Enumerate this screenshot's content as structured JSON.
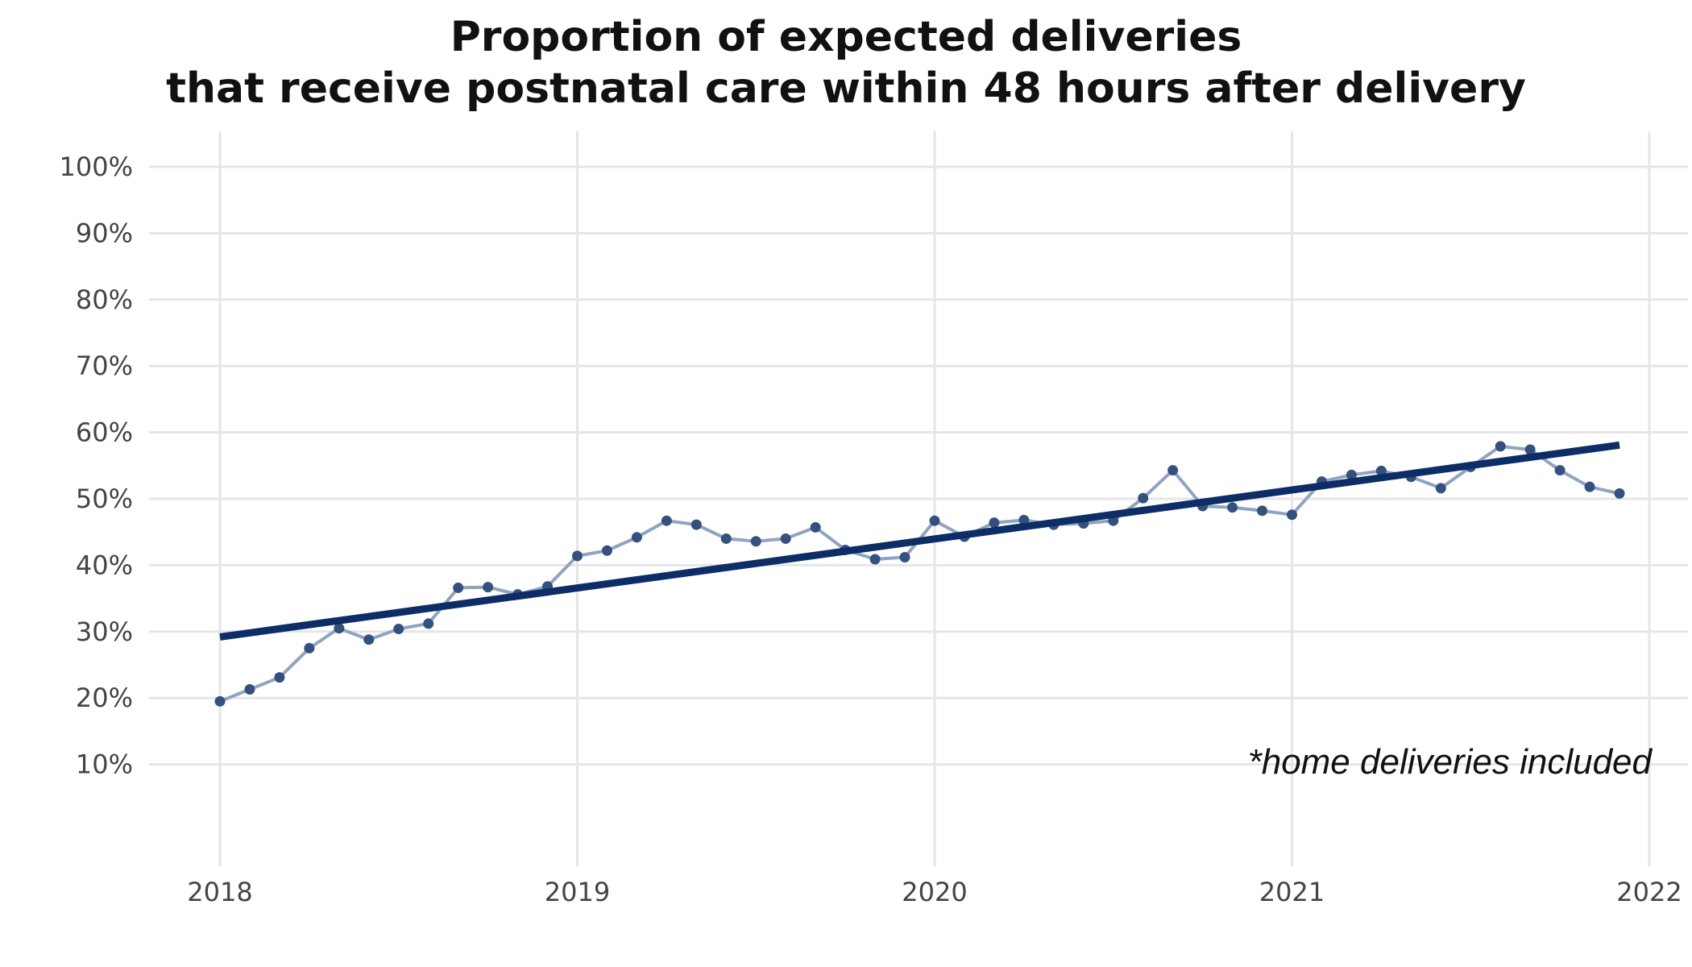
{
  "chart_data": {
    "type": "line",
    "title_line1": "Proportion of expected deliveries",
    "title_line2": "that receive postnatal care within 48 hours after delivery",
    "annotation": "*home deliveries included",
    "xlim": [
      2018,
      2022
    ],
    "ylim": [
      0,
      105
    ],
    "x_ticks": [
      {
        "value": 2018,
        "label": "2018"
      },
      {
        "value": 2019,
        "label": "2019"
      },
      {
        "value": 2020,
        "label": "2020"
      },
      {
        "value": 2021,
        "label": "2021"
      },
      {
        "value": 2022,
        "label": "2022"
      }
    ],
    "y_ticks": [
      {
        "value": 10,
        "label": "10%"
      },
      {
        "value": 20,
        "label": "20%"
      },
      {
        "value": 30,
        "label": "30%"
      },
      {
        "value": 40,
        "label": "40%"
      },
      {
        "value": 50,
        "label": "50%"
      },
      {
        "value": 60,
        "label": "60%"
      },
      {
        "value": 70,
        "label": "70%"
      },
      {
        "value": 80,
        "label": "80%"
      },
      {
        "value": 90,
        "label": "90%"
      },
      {
        "value": 100,
        "label": "100%"
      }
    ],
    "grid": true,
    "series": [
      {
        "kind": "monthly",
        "color": "#8fa3c2",
        "point_color": "#34517e",
        "x": [
          "2018-01",
          "2018-02",
          "2018-03",
          "2018-04",
          "2018-05",
          "2018-06",
          "2018-07",
          "2018-08",
          "2018-09",
          "2018-10",
          "2018-11",
          "2018-12",
          "2019-01",
          "2019-02",
          "2019-03",
          "2019-04",
          "2019-05",
          "2019-06",
          "2019-07",
          "2019-08",
          "2019-09",
          "2019-10",
          "2019-11",
          "2019-12",
          "2020-01",
          "2020-02",
          "2020-03",
          "2020-04",
          "2020-05",
          "2020-06",
          "2020-07",
          "2020-08",
          "2020-09",
          "2020-10",
          "2020-11",
          "2020-12",
          "2021-01",
          "2021-02",
          "2021-03",
          "2021-04",
          "2021-05",
          "2021-06",
          "2021-07",
          "2021-08",
          "2021-09",
          "2021-10",
          "2021-11",
          "2021-12"
        ],
        "values": [
          19.5,
          21.3,
          23.1,
          27.5,
          30.5,
          28.8,
          30.4,
          31.2,
          36.6,
          36.7,
          35.6,
          36.8,
          41.4,
          42.2,
          44.2,
          46.7,
          46.1,
          44.0,
          43.6,
          44.0,
          45.7,
          42.3,
          40.9,
          41.2,
          46.7,
          44.3,
          46.4,
          46.8,
          46.1,
          46.3,
          46.7,
          50.1,
          54.3,
          48.9,
          48.7,
          48.2,
          47.6,
          52.6,
          53.6,
          54.2,
          53.3,
          51.6,
          54.8,
          57.9,
          57.4,
          54.3,
          51.8,
          50.8
        ]
      },
      {
        "kind": "trend",
        "color": "#0d2d66",
        "x": [
          "2018-01",
          "2021-12"
        ],
        "values": [
          29.2,
          58.1
        ]
      }
    ]
  }
}
